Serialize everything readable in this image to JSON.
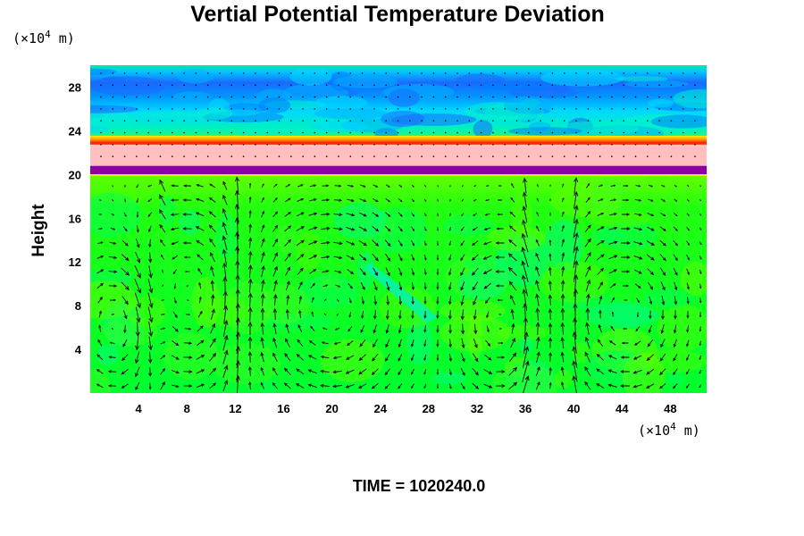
{
  "chart_data": {
    "type": "heatmap",
    "title": "Vertial Potential Temperature Deviation",
    "ylabel": "Height",
    "xlabel": "",
    "x_unit_prefix": "(×10",
    "x_unit_exp": "4",
    "x_unit_suffix": " m)",
    "y_unit_prefix": "(×10",
    "y_unit_exp": "4",
    "y_unit_suffix": " m)",
    "xlim": [
      0,
      51
    ],
    "ylim": [
      0,
      30
    ],
    "xticks": [
      4,
      8,
      12,
      16,
      20,
      24,
      28,
      32,
      36,
      40,
      44,
      48
    ],
    "yticks": [
      4,
      8,
      12,
      16,
      20,
      24,
      28
    ],
    "grid": false,
    "overlay": "wind vectors (arrows)",
    "colors": {
      "background_field": "#00ff2a",
      "lower_field_light": "#2dff00",
      "stratosphere_base": "#00f08a",
      "upper_cyan": "#00d8ff",
      "upper_blue": "#1a6bff",
      "warm_layer_red": "#ff1a00",
      "warm_layer_orange": "#ff9900",
      "warm_layer_yellow": "#ffee00",
      "pink_layer": "#ffbfbf",
      "purple_band": "#8c00a0",
      "arrow": "#000000"
    },
    "bands": [
      {
        "name": "purple band",
        "y0": 19.8,
        "y1": 20.6
      },
      {
        "name": "pink layer",
        "y0": 20.6,
        "y1": 22.6
      },
      {
        "name": "red warm layer",
        "y0": 22.6,
        "y1": 23.2
      }
    ]
  },
  "footer": {
    "time_text": "TIME = 1020240.0"
  }
}
